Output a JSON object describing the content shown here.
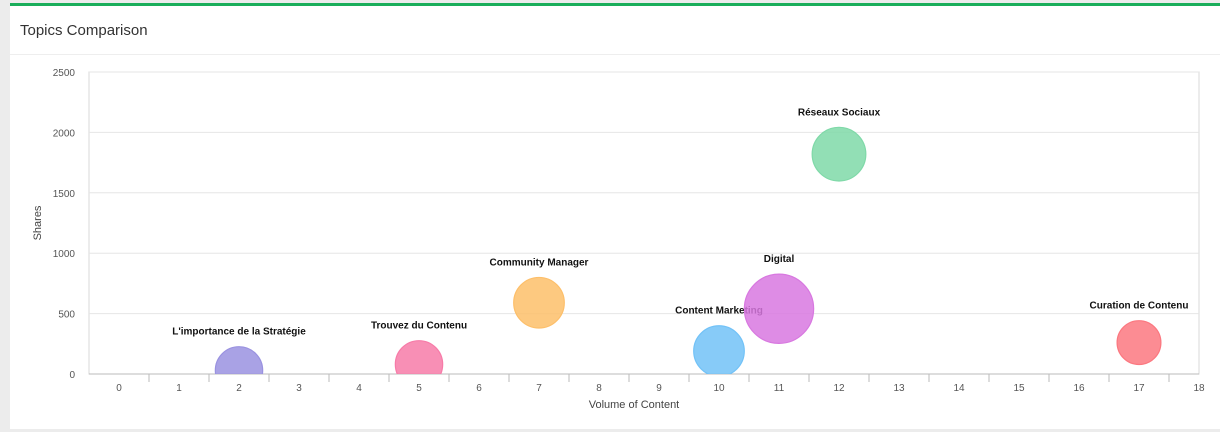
{
  "panel": {
    "title": "Topics Comparison",
    "accent_color": "#1aae5b"
  },
  "chart_data": {
    "type": "scatter",
    "subtype": "bubble",
    "title": "Topics Comparison",
    "xlabel": "Volume of Content",
    "ylabel": "Shares",
    "xlim": [
      -0.5,
      18
    ],
    "ylim": [
      0,
      2500
    ],
    "x_ticks": [
      0,
      1,
      2,
      3,
      4,
      5,
      6,
      7,
      8,
      9,
      10,
      11,
      12,
      13,
      14,
      15,
      16,
      17,
      18
    ],
    "y_ticks": [
      0,
      500,
      1000,
      1500,
      2000,
      2500
    ],
    "grid": true,
    "legend": "none",
    "points": [
      {
        "label": "L'importance de la Stratégie",
        "x": 2,
        "y": 30,
        "size": 1.4,
        "color": "#9a92e0"
      },
      {
        "label": "Trouvez du Contenu",
        "x": 5,
        "y": 80,
        "size": 1.4,
        "color": "#f77ba8"
      },
      {
        "label": "Community Manager",
        "x": 7,
        "y": 590,
        "size": 1.6,
        "color": "#fdbf6a"
      },
      {
        "label": "Content Marketing",
        "x": 10,
        "y": 190,
        "size": 1.6,
        "color": "#72c2f7"
      },
      {
        "label": "Digital",
        "x": 11,
        "y": 540,
        "size": 3.0,
        "color": "#d878e0"
      },
      {
        "label": "Réseaux Sociaux",
        "x": 12,
        "y": 1820,
        "size": 1.8,
        "color": "#7fd9a8"
      },
      {
        "label": "Curation de Contenu",
        "x": 17,
        "y": 260,
        "size": 1.2,
        "color": "#fb7880"
      }
    ]
  }
}
